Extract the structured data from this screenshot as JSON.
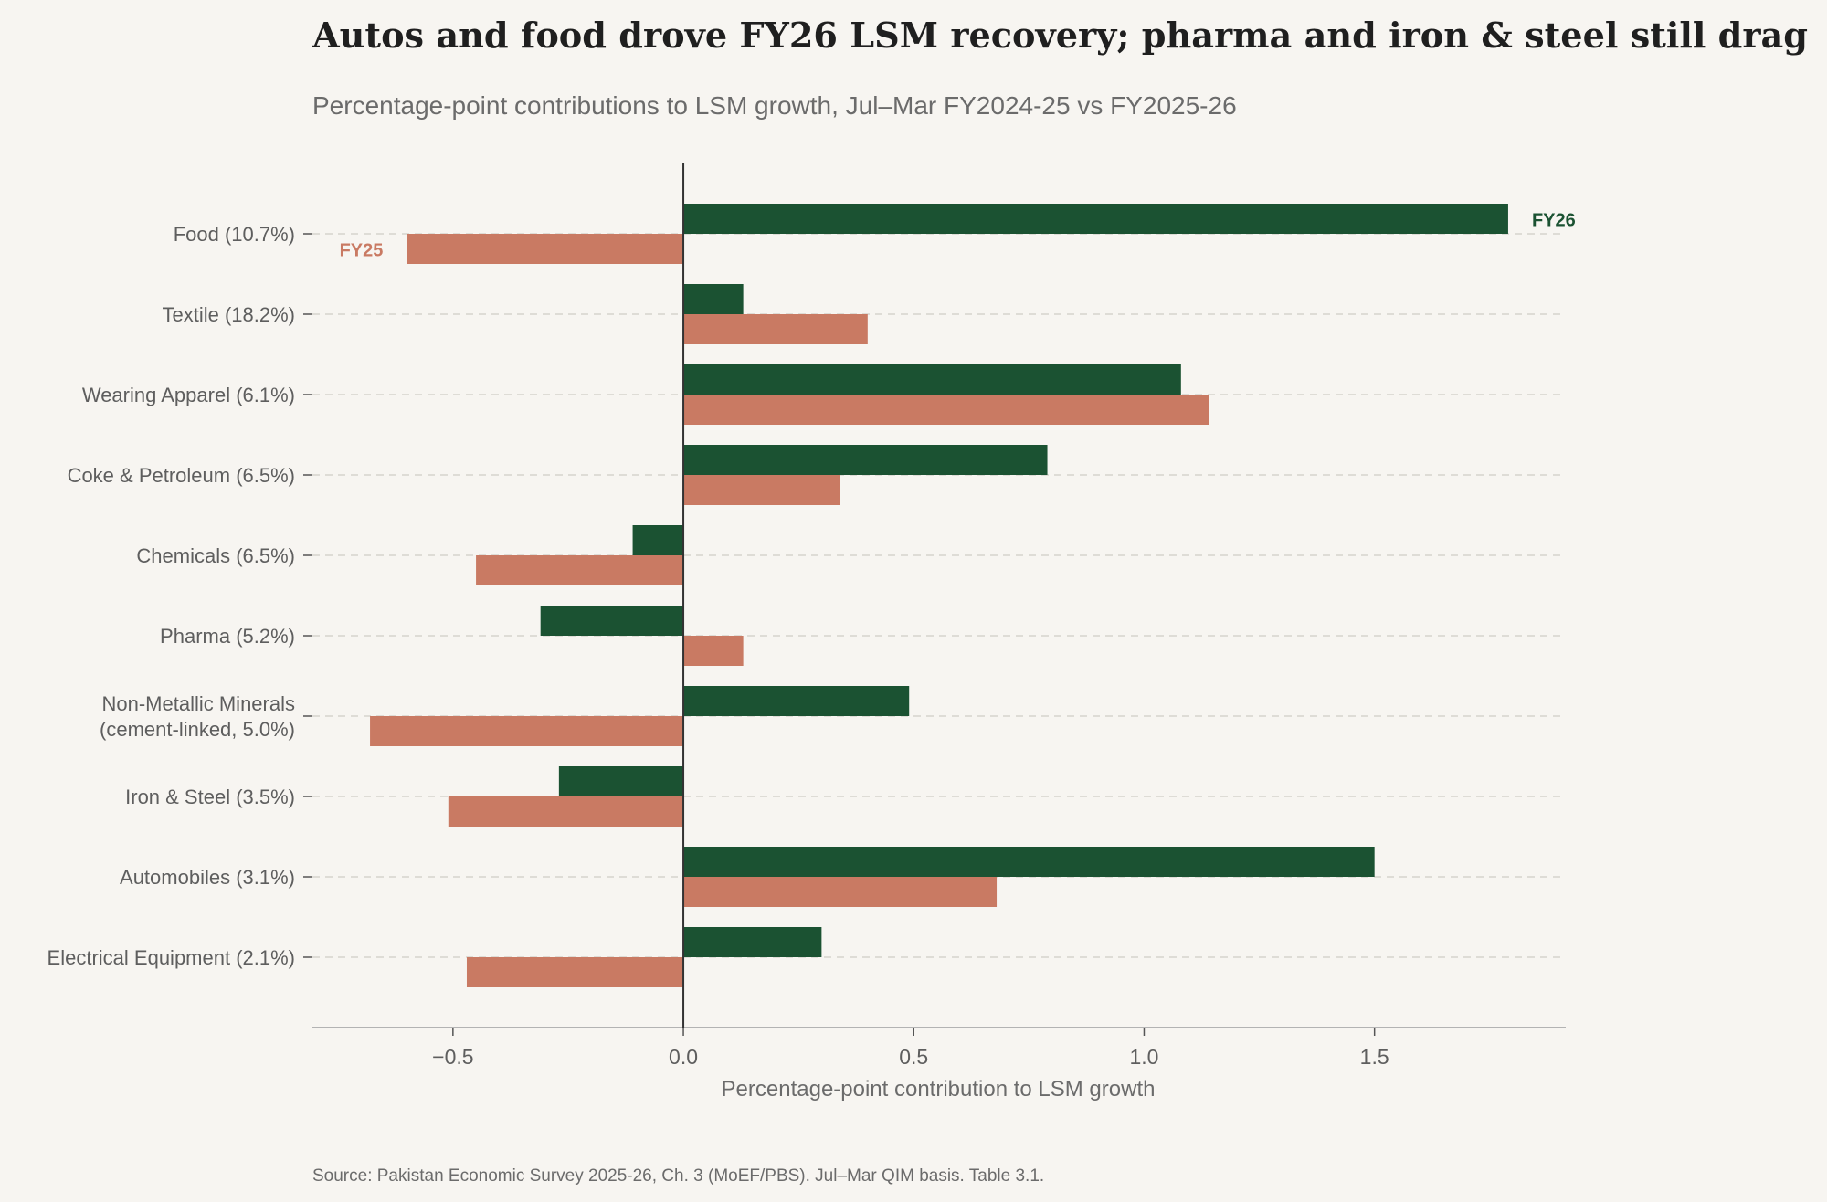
{
  "chart_data": {
    "type": "bar",
    "orientation": "horizontal",
    "title": "Autos and food drove FY26 LSM recovery; pharma and iron & steel still drag",
    "subtitle": "Percentage-point contributions to LSM growth, Jul–Mar FY2024-25 vs FY2025-26",
    "xlabel": "Percentage-point contribution to LSM growth",
    "source": "Source: Pakistan Economic Survey 2025-26, Ch. 3 (MoEF/PBS). Jul–Mar QIM basis. Table 3.1.",
    "categories": [
      [
        "Food (10.7%)"
      ],
      [
        "Textile (18.2%)"
      ],
      [
        "Wearing Apparel (6.1%)"
      ],
      [
        "Coke & Petroleum (6.5%)"
      ],
      [
        "Chemicals (6.5%)"
      ],
      [
        "Pharma (5.2%)"
      ],
      [
        "Non-Metallic Minerals",
        "(cement-linked, 5.0%)"
      ],
      [
        "Iron & Steel (3.5%)"
      ],
      [
        "Automobiles (3.1%)"
      ],
      [
        "Electrical Equipment (2.1%)"
      ]
    ],
    "series": [
      {
        "name": "FY26",
        "color": "#1b5232",
        "values": [
          1.79,
          0.13,
          1.08,
          0.79,
          -0.11,
          -0.31,
          0.49,
          -0.27,
          1.5,
          0.3
        ]
      },
      {
        "name": "FY25",
        "color": "#c97a63",
        "values": [
          -0.6,
          0.4,
          1.14,
          0.34,
          -0.45,
          0.13,
          -0.68,
          -0.51,
          0.68,
          -0.47
        ]
      }
    ],
    "xlim": [
      -0.805,
      1.915
    ],
    "xticks": [
      -0.5,
      0.0,
      0.5,
      1.0,
      1.5
    ],
    "xtick_labels": [
      "−0.5",
      "0.0",
      "0.5",
      "1.0",
      "1.5"
    ],
    "grid": "horizontal dashed at category rows",
    "legend": "inline labels at the Food bars"
  }
}
